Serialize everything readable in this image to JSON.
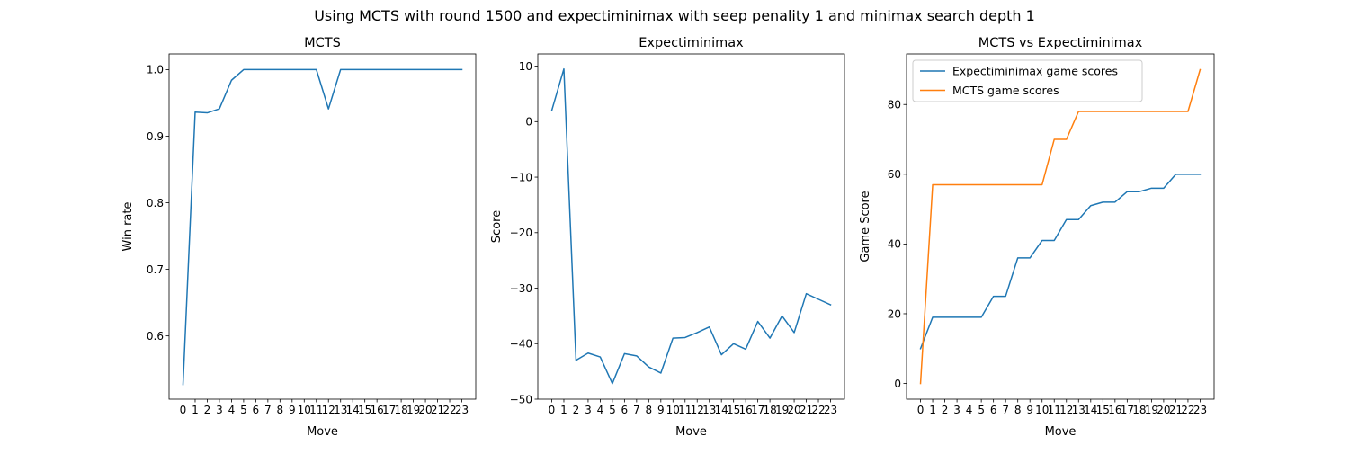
{
  "figure": {
    "suptitle": "Using MCTS with round 1500 and expectiminimax with seep penality 1 and minimax search depth 1"
  },
  "colors": {
    "blue": "#1f77b4",
    "orange": "#ff7f0e"
  },
  "chart_data": [
    {
      "type": "line",
      "title": "MCTS",
      "xlabel": "Move",
      "ylabel": "Win rate",
      "x": [
        0,
        1,
        2,
        3,
        4,
        5,
        6,
        7,
        8,
        9,
        10,
        11,
        12,
        13,
        14,
        15,
        16,
        17,
        18,
        19,
        20,
        21,
        22,
        23
      ],
      "xlim": [
        -1.15,
        24.15
      ],
      "ylim": [
        0.505,
        1.0235
      ],
      "yticks": [
        0.6,
        0.7,
        0.8,
        0.9,
        1.0
      ],
      "ytick_labels": [
        "0.6",
        "0.7",
        "0.8",
        "0.9",
        "1.0"
      ],
      "grid": false,
      "series": [
        {
          "color": "#1f77b4",
          "values": [
            0.527,
            0.936,
            0.935,
            0.941,
            0.984,
            1.0,
            1.0,
            1.0,
            1.0,
            1.0,
            1.0,
            1.0,
            0.941,
            1.0,
            1.0,
            1.0,
            1.0,
            1.0,
            1.0,
            1.0,
            1.0,
            1.0,
            1.0,
            1.0
          ]
        }
      ]
    },
    {
      "type": "line",
      "title": "Expectiminimax",
      "xlabel": "Move",
      "ylabel": "Score",
      "x": [
        0,
        1,
        2,
        3,
        4,
        5,
        6,
        7,
        8,
        9,
        10,
        11,
        12,
        13,
        14,
        15,
        16,
        17,
        18,
        19,
        20,
        21,
        22,
        23
      ],
      "xlim": [
        -1.15,
        24.15
      ],
      "ylim": [
        -50,
        12.2
      ],
      "yticks": [
        -50,
        -40,
        -30,
        -20,
        -10,
        0,
        10
      ],
      "ytick_labels": [
        "−50",
        "−40",
        "−30",
        "−20",
        "−10",
        "0",
        "10"
      ],
      "grid": false,
      "series": [
        {
          "color": "#1f77b4",
          "values": [
            2,
            9.5,
            -43,
            -41.7,
            -42.4,
            -47.2,
            -41.8,
            -42.2,
            -44.2,
            -45.3,
            -39,
            -38.9,
            -38,
            -37,
            -42,
            -40,
            -41,
            -36,
            -39,
            -35,
            -38,
            -31,
            -32,
            -33
          ]
        }
      ]
    },
    {
      "type": "line",
      "title": "MCTS vs Expectiminimax",
      "xlabel": "Move",
      "ylabel": "Game Score",
      "x": [
        0,
        1,
        2,
        3,
        4,
        5,
        6,
        7,
        8,
        9,
        10,
        11,
        12,
        13,
        14,
        15,
        16,
        17,
        18,
        19,
        20,
        21,
        22,
        23
      ],
      "xlim": [
        -1.15,
        24.15
      ],
      "ylim": [
        -4.5,
        94.5
      ],
      "yticks": [
        0,
        20,
        40,
        60,
        80
      ],
      "ytick_labels": [
        "0",
        "20",
        "40",
        "60",
        "80"
      ],
      "grid": false,
      "legend": "top-left",
      "series": [
        {
          "name": "Expectiminimax game scores",
          "color": "#1f77b4",
          "values": [
            10,
            19,
            19,
            19,
            19,
            19,
            25,
            25,
            36,
            36,
            41,
            41,
            47,
            47,
            51,
            52,
            52,
            55,
            55,
            56,
            56,
            60,
            60,
            60
          ]
        },
        {
          "name": "MCTS game scores",
          "color": "#ff7f0e",
          "values": [
            0,
            57,
            57,
            57,
            57,
            57,
            57,
            57,
            57,
            57,
            57,
            70,
            70,
            78,
            78,
            78,
            78,
            78,
            78,
            78,
            78,
            78,
            78,
            90
          ]
        }
      ]
    }
  ]
}
